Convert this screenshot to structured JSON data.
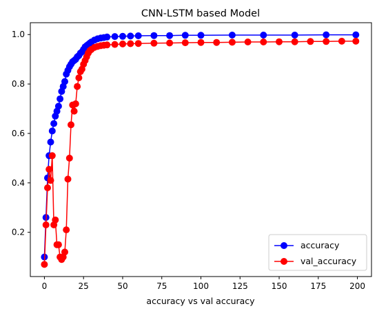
{
  "chart_data": {
    "type": "line",
    "title": "CNN-LSTM based Model",
    "xlabel": "accuracy vs val accuracy",
    "ylabel": "",
    "xlim": [
      -9,
      209
    ],
    "ylim": [
      0.021,
      1.048
    ],
    "xticks": [
      0,
      25,
      50,
      75,
      100,
      125,
      150,
      175,
      200
    ],
    "xtick_labels": [
      "0",
      "25",
      "50",
      "75",
      "100",
      "125",
      "150",
      "175",
      "200"
    ],
    "yticks": [
      0.2,
      0.4,
      0.6,
      0.8,
      1.0
    ],
    "ytick_labels": [
      "0.2",
      "0.4",
      "0.6",
      "0.8",
      "1.0"
    ],
    "grid": false,
    "legend_position": "lower-right",
    "series": [
      {
        "name": "accuracy",
        "color": "#0000ff",
        "marker": "circle",
        "x": [
          0,
          1,
          2,
          3,
          4,
          5,
          6,
          7,
          8,
          9,
          10,
          11,
          12,
          13,
          14,
          15,
          16,
          17,
          18,
          19,
          20,
          21,
          22,
          23,
          24,
          25,
          26,
          27,
          28,
          29,
          30,
          32,
          34,
          36,
          38,
          40,
          45,
          50,
          55,
          60,
          70,
          80,
          90,
          100,
          120,
          140,
          160,
          180,
          199
        ],
        "values": [
          0.1,
          0.26,
          0.42,
          0.51,
          0.565,
          0.61,
          0.64,
          0.67,
          0.69,
          0.71,
          0.74,
          0.77,
          0.79,
          0.81,
          0.84,
          0.855,
          0.87,
          0.88,
          0.89,
          0.895,
          0.9,
          0.91,
          0.915,
          0.925,
          0.93,
          0.94,
          0.95,
          0.955,
          0.96,
          0.965,
          0.97,
          0.978,
          0.983,
          0.986,
          0.988,
          0.99,
          0.992,
          0.993,
          0.994,
          0.995,
          0.996,
          0.996,
          0.997,
          0.997,
          0.998,
          0.998,
          0.998,
          0.999,
          0.999
        ]
      },
      {
        "name": "val_accuracy",
        "color": "#ff0000",
        "marker": "circle",
        "x": [
          0,
          1,
          2,
          3,
          4,
          5,
          6,
          7,
          8,
          9,
          10,
          11,
          12,
          13,
          14,
          15,
          16,
          17,
          18,
          19,
          20,
          21,
          22,
          23,
          24,
          25,
          26,
          27,
          28,
          29,
          30,
          32,
          34,
          36,
          38,
          40,
          45,
          50,
          55,
          60,
          70,
          80,
          90,
          100,
          110,
          120,
          130,
          140,
          150,
          160,
          170,
          180,
          190,
          199
        ],
        "values": [
          0.07,
          0.23,
          0.38,
          0.455,
          0.41,
          0.51,
          0.23,
          0.25,
          0.15,
          0.15,
          0.1,
          0.09,
          0.1,
          0.12,
          0.21,
          0.415,
          0.5,
          0.635,
          0.715,
          0.69,
          0.72,
          0.79,
          0.825,
          0.85,
          0.86,
          0.88,
          0.895,
          0.91,
          0.925,
          0.935,
          0.94,
          0.948,
          0.952,
          0.955,
          0.957,
          0.958,
          0.96,
          0.962,
          0.963,
          0.964,
          0.965,
          0.966,
          0.967,
          0.968,
          0.968,
          0.969,
          0.97,
          0.97,
          0.971,
          0.971,
          0.972,
          0.972,
          0.973,
          0.973
        ]
      }
    ]
  }
}
